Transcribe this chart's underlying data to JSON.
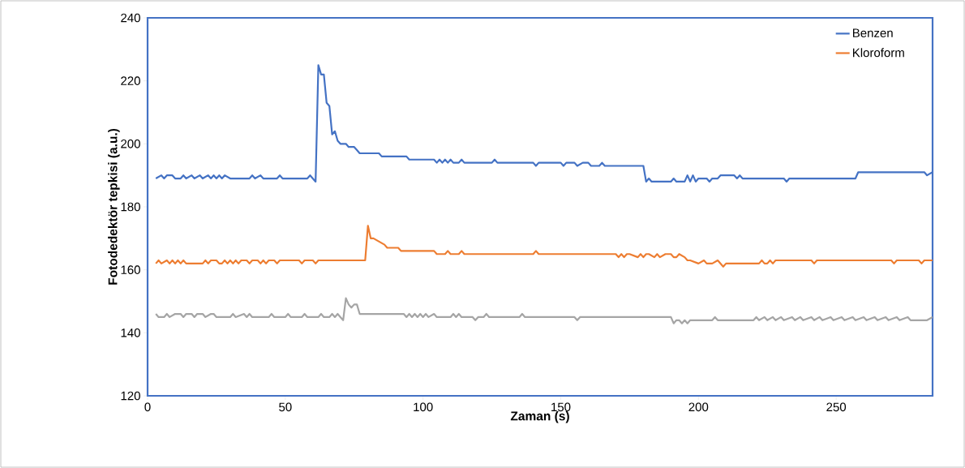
{
  "chart_data": {
    "type": "line",
    "xlabel": "Zaman (s)",
    "ylabel": "Fotodedektör  tepkisi (a.u.)",
    "xlim": [
      0,
      285
    ],
    "xticks": [
      0,
      50,
      100,
      150,
      200,
      250
    ],
    "ylim": [
      120,
      240
    ],
    "yticks": [
      120,
      140,
      160,
      180,
      200,
      220,
      240
    ],
    "legend": "top right",
    "marker": "none",
    "line_style": "solid",
    "grid": false,
    "series": [
      {
        "name": "Benzen",
        "color": "#4472c4",
        "x": [
          3,
          5,
          6,
          7,
          9,
          10,
          12,
          13,
          14,
          16,
          17,
          19,
          20,
          22,
          23,
          24,
          25,
          26,
          27,
          28,
          30,
          37,
          38,
          39,
          41,
          42,
          47,
          48,
          49,
          58,
          59,
          60,
          61,
          62,
          63,
          64,
          65,
          66,
          67,
          68,
          69,
          70,
          72,
          73,
          75,
          76,
          77,
          84,
          85,
          94,
          95,
          104,
          105,
          106,
          107,
          108,
          109,
          110,
          111,
          113,
          114,
          115,
          125,
          126,
          127,
          140,
          141,
          142,
          150,
          151,
          152,
          155,
          156,
          158,
          160,
          161,
          164,
          165,
          166,
          180,
          181,
          182,
          183,
          190,
          191,
          192,
          195,
          196,
          197,
          198,
          199,
          200,
          203,
          204,
          205,
          207,
          208,
          213,
          214,
          215,
          216,
          231,
          232,
          233,
          257,
          258,
          282,
          283,
          285
        ],
        "values": [
          189,
          190,
          189,
          190,
          190,
          189,
          189,
          190,
          189,
          190,
          189,
          190,
          189,
          190,
          189,
          190,
          189,
          190,
          189,
          190,
          189,
          189,
          190,
          189,
          190,
          189,
          189,
          190,
          189,
          189,
          190,
          189,
          188,
          225,
          222,
          222,
          213,
          212,
          203,
          204,
          201,
          200,
          200,
          199,
          199,
          198,
          197,
          197,
          196,
          196,
          195,
          195,
          194,
          195,
          194,
          195,
          194,
          195,
          194,
          194,
          195,
          194,
          194,
          195,
          194,
          194,
          193,
          194,
          194,
          193,
          194,
          194,
          193,
          194,
          194,
          193,
          193,
          194,
          193,
          193,
          188,
          189,
          188,
          188,
          189,
          188,
          188,
          190,
          188,
          190,
          188,
          189,
          189,
          188,
          189,
          189,
          190,
          190,
          189,
          190,
          189,
          189,
          188,
          189,
          189,
          191,
          191,
          190,
          191
        ]
      },
      {
        "name": "Kloroform",
        "color": "#ed7d31",
        "x": [
          3,
          4,
          5,
          7,
          8,
          9,
          10,
          11,
          12,
          13,
          14,
          20,
          21,
          22,
          23,
          25,
          26,
          27,
          28,
          29,
          30,
          31,
          32,
          33,
          34,
          36,
          37,
          38,
          40,
          41,
          42,
          43,
          44,
          46,
          47,
          48,
          55,
          56,
          57,
          60,
          61,
          62,
          79,
          80,
          81,
          82,
          84,
          86,
          87,
          91,
          92,
          104,
          105,
          108,
          109,
          110,
          113,
          114,
          115,
          140,
          141,
          142,
          170,
          171,
          172,
          173,
          174,
          175,
          178,
          179,
          180,
          181,
          182,
          184,
          185,
          186,
          188,
          190,
          191,
          192,
          193,
          195,
          196,
          197,
          200,
          202,
          203,
          205,
          207,
          209,
          210,
          222,
          223,
          224,
          225,
          226,
          227,
          228,
          229,
          241,
          242,
          243,
          270,
          271,
          272,
          280,
          281,
          282,
          285
        ],
        "values": [
          162,
          163,
          162,
          163,
          162,
          163,
          162,
          163,
          162,
          163,
          162,
          162,
          163,
          162,
          163,
          163,
          162,
          162,
          163,
          162,
          163,
          162,
          163,
          162,
          163,
          163,
          162,
          163,
          163,
          162,
          163,
          162,
          163,
          163,
          162,
          163,
          163,
          162,
          163,
          163,
          162,
          163,
          163,
          174,
          170,
          170,
          169,
          168,
          167,
          167,
          166,
          166,
          165,
          165,
          166,
          165,
          165,
          166,
          165,
          165,
          166,
          165,
          165,
          164,
          165,
          164,
          165,
          165,
          164,
          165,
          164,
          165,
          165,
          164,
          165,
          164,
          165,
          165,
          164,
          164,
          165,
          164,
          163,
          163,
          162,
          163,
          162,
          162,
          163,
          161,
          162,
          162,
          163,
          162,
          162,
          163,
          162,
          163,
          163,
          163,
          162,
          163,
          163,
          162,
          163,
          163,
          162,
          163,
          163
        ]
      },
      {
        "color": "#a5a5a5",
        "x": [
          3,
          4,
          6,
          7,
          8,
          10,
          12,
          13,
          14,
          16,
          17,
          18,
          20,
          21,
          23,
          24,
          25,
          30,
          31,
          32,
          35,
          36,
          37,
          38,
          44,
          45,
          46,
          50,
          51,
          52,
          56,
          57,
          58,
          62,
          63,
          64,
          66,
          67,
          68,
          69,
          70,
          71,
          72,
          73,
          74,
          75,
          76,
          77,
          93,
          94,
          95,
          96,
          97,
          98,
          99,
          100,
          101,
          102,
          104,
          105,
          110,
          111,
          112,
          113,
          114,
          118,
          119,
          120,
          122,
          123,
          124,
          135,
          136,
          137,
          155,
          156,
          157,
          190,
          191,
          192,
          193,
          194,
          195,
          196,
          197,
          205,
          206,
          207,
          220,
          221,
          222,
          224,
          225,
          227,
          228,
          230,
          231,
          234,
          235,
          237,
          238,
          241,
          242,
          244,
          245,
          248,
          249,
          252,
          253,
          256,
          257,
          260,
          261,
          264,
          265,
          268,
          269,
          272,
          273,
          276,
          277,
          283,
          285
        ],
        "values": [
          146,
          145,
          145,
          146,
          145,
          146,
          146,
          145,
          146,
          146,
          145,
          146,
          146,
          145,
          146,
          146,
          145,
          145,
          146,
          145,
          146,
          145,
          146,
          145,
          145,
          146,
          145,
          145,
          146,
          145,
          145,
          146,
          145,
          145,
          146,
          145,
          145,
          146,
          145,
          146,
          145,
          144,
          151,
          149,
          148,
          149,
          149,
          146,
          146,
          145,
          146,
          145,
          146,
          145,
          146,
          145,
          146,
          145,
          146,
          145,
          145,
          146,
          145,
          146,
          145,
          145,
          144,
          145,
          145,
          146,
          145,
          145,
          146,
          145,
          145,
          144,
          145,
          145,
          143,
          144,
          144,
          143,
          144,
          143,
          144,
          144,
          145,
          144,
          144,
          145,
          144,
          145,
          144,
          145,
          144,
          145,
          144,
          145,
          144,
          145,
          144,
          145,
          144,
          145,
          144,
          145,
          144,
          145,
          144,
          145,
          144,
          145,
          144,
          145,
          144,
          145,
          144,
          145,
          144,
          145,
          144,
          144,
          145
        ]
      }
    ]
  }
}
